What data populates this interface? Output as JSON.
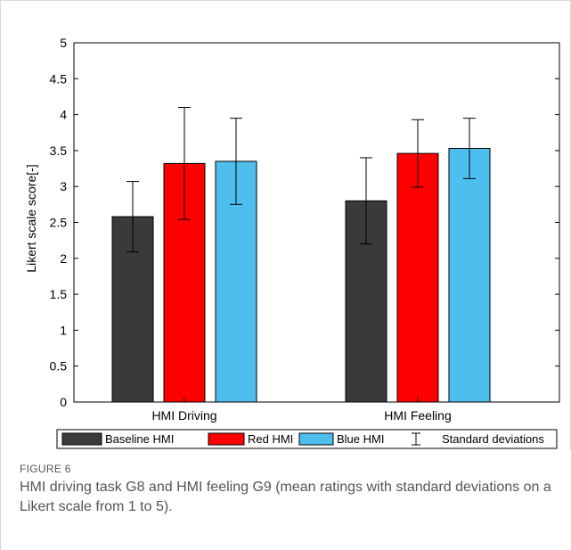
{
  "figure": {
    "label": "FIGURE 6",
    "caption": "HMI driving task G8 and HMI feeling G9 (mean ratings with standard deviations on a Likert scale from 1 to 5)."
  },
  "chart_data": {
    "type": "bar",
    "title": "",
    "xlabel": "",
    "ylabel": "Likert scale score[-]",
    "ylim": [
      0,
      5
    ],
    "yticks": [
      0,
      0.5,
      1,
      1.5,
      2,
      2.5,
      3,
      3.5,
      4,
      4.5,
      5
    ],
    "ytick_labels": [
      "0",
      "0.5",
      "1",
      "1.5",
      "2",
      "2.5",
      "3",
      "3.5",
      "4",
      "4.5",
      "5"
    ],
    "categories": [
      "HMI Driving",
      "HMI Feeling"
    ],
    "series": [
      {
        "name": "Baseline HMI",
        "color": "#3a3a3a",
        "values": [
          2.58,
          2.8
        ],
        "err": [
          0.49,
          0.6
        ]
      },
      {
        "name": "Red HMI",
        "color": "#ff0000",
        "values": [
          3.32,
          3.46
        ],
        "err": [
          0.78,
          0.47
        ]
      },
      {
        "name": "Blue HMI",
        "color": "#4dbeee",
        "values": [
          3.35,
          3.53
        ],
        "err": [
          0.6,
          0.42
        ]
      }
    ],
    "error_legend_label": "Standard deviations",
    "grid": false,
    "legend_position": "bottom"
  }
}
